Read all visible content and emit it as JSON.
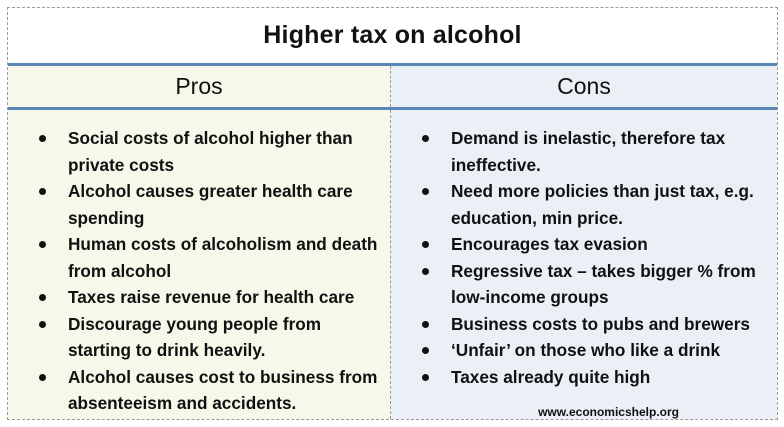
{
  "title": "Higher tax on alcohol",
  "columns": {
    "pros": {
      "header": "Pros",
      "items": [
        "Social costs of alcohol higher than private costs",
        "Alcohol causes greater health care spending",
        "Human costs of alcoholism and death from alcohol",
        "Taxes raise revenue for health care",
        "Discourage young people from starting to drink heavily.",
        "Alcohol causes cost to business from absenteeism and accidents."
      ]
    },
    "cons": {
      "header": "Cons",
      "items": [
        "Demand is inelastic, therefore tax ineffective.",
        "Need more policies than just tax, e.g. education, min price.",
        "Encourages tax evasion",
        "Regressive tax – takes bigger % from low-income groups",
        "Business costs to pubs and brewers",
        "‘Unfair’ on those who like a drink",
        "Taxes already quite high"
      ]
    }
  },
  "footer": {
    "url": "www.economicshelp.org"
  },
  "colors": {
    "divider_blue": "#5b86b8",
    "pros_background": "#f7f7ea",
    "cons_background": "#eaf0f6"
  }
}
